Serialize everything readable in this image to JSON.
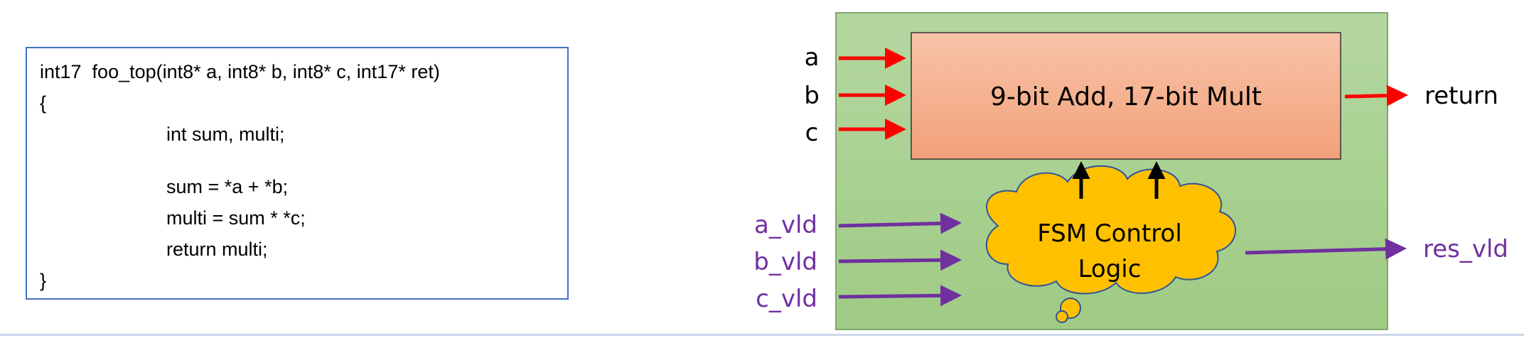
{
  "code": {
    "lines": [
      "int17  foo_top(int8* a, int8* b, int8* c, int17* ret)",
      "{",
      "int sum, multi;",
      "sum = *a + *b;",
      "multi = sum * *c;",
      "return multi;",
      "}"
    ]
  },
  "diagram": {
    "inputs": [
      "a",
      "b",
      "c"
    ],
    "valid_inputs": [
      "a_vld",
      "b_vld",
      "c_vld"
    ],
    "datapath_label": "9-bit Add, 17-bit Mult",
    "fsm_label_line1": "FSM Control",
    "fsm_label_line2": "Logic",
    "output": "return",
    "valid_output": "res_vld"
  },
  "colors": {
    "background_panel": "#a9d18e",
    "datapath_fill": "#f4b183",
    "fsm_fill": "#ffc000",
    "data_arrow": "#ff0000",
    "valid_arrow": "#7030a0",
    "control_arrow": "#000000",
    "code_border": "#4472c4"
  }
}
